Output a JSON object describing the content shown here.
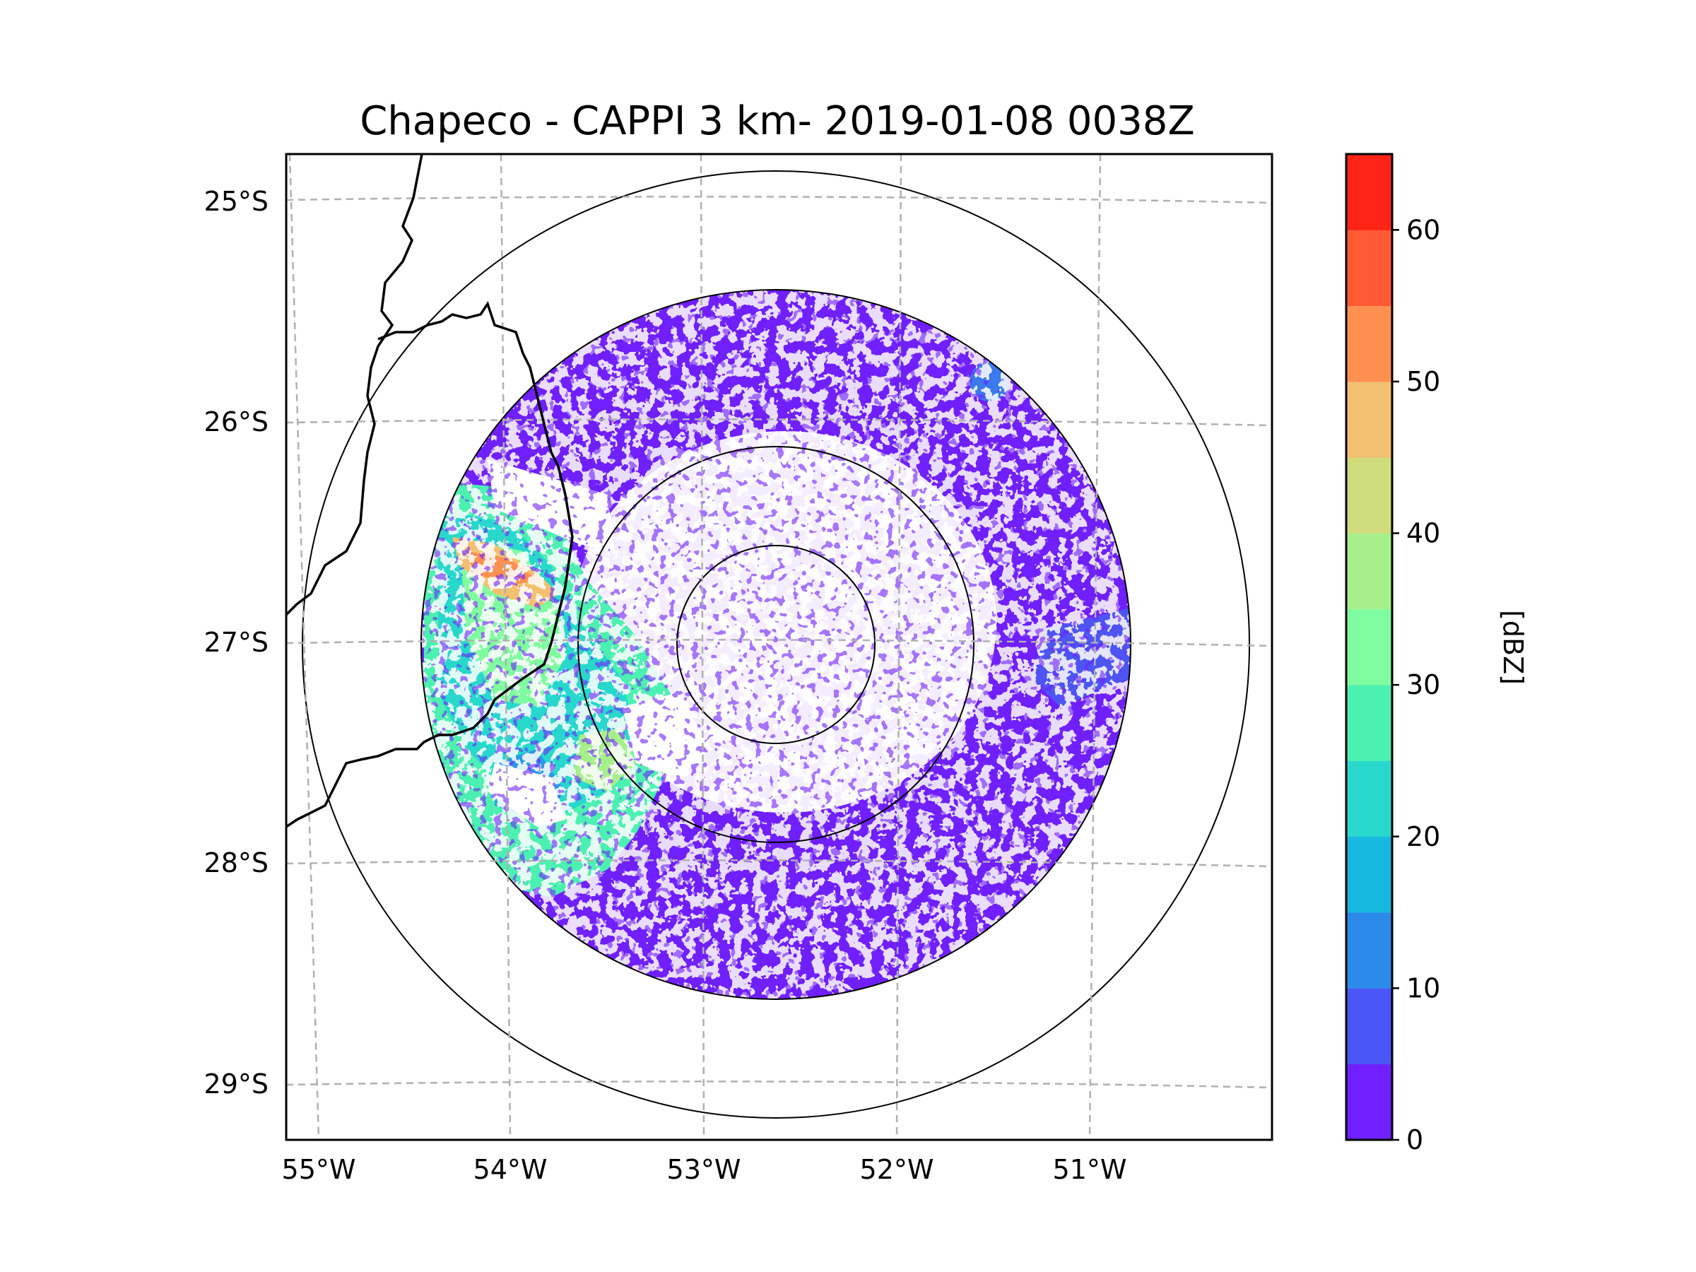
{
  "title": "Chapeco - CAPPI 3 km- 2019-01-08 0038Z",
  "map": {
    "lat_ticks": [
      "25°S",
      "26°S",
      "27°S",
      "28°S",
      "29°S"
    ],
    "lon_ticks": [
      "55°W",
      "54°W",
      "53°W",
      "52°W",
      "51°W"
    ],
    "gridline_style": "dashed gray",
    "range_rings": "4 concentric rings centered on radar",
    "features": [
      "coastline/border line (black)",
      "radar reflectivity field"
    ]
  },
  "colorbar": {
    "label": "[dBZ]",
    "ticks": [
      "0",
      "10",
      "20",
      "30",
      "40",
      "50",
      "60"
    ],
    "min": 0,
    "max": 65,
    "step": 5,
    "colors": [
      "#7020ff",
      "#4a56f5",
      "#2c8aea",
      "#16b8e0",
      "#28d8cc",
      "#4cf0b0",
      "#80fca0",
      "#a6f08c",
      "#d0dc7c",
      "#f2c070",
      "#ff9050",
      "#ff5a34",
      "#ff2416"
    ]
  },
  "reflectivity": {
    "west_cluster_dbz_range": [
      15,
      45
    ],
    "background_dbz": 0
  }
}
